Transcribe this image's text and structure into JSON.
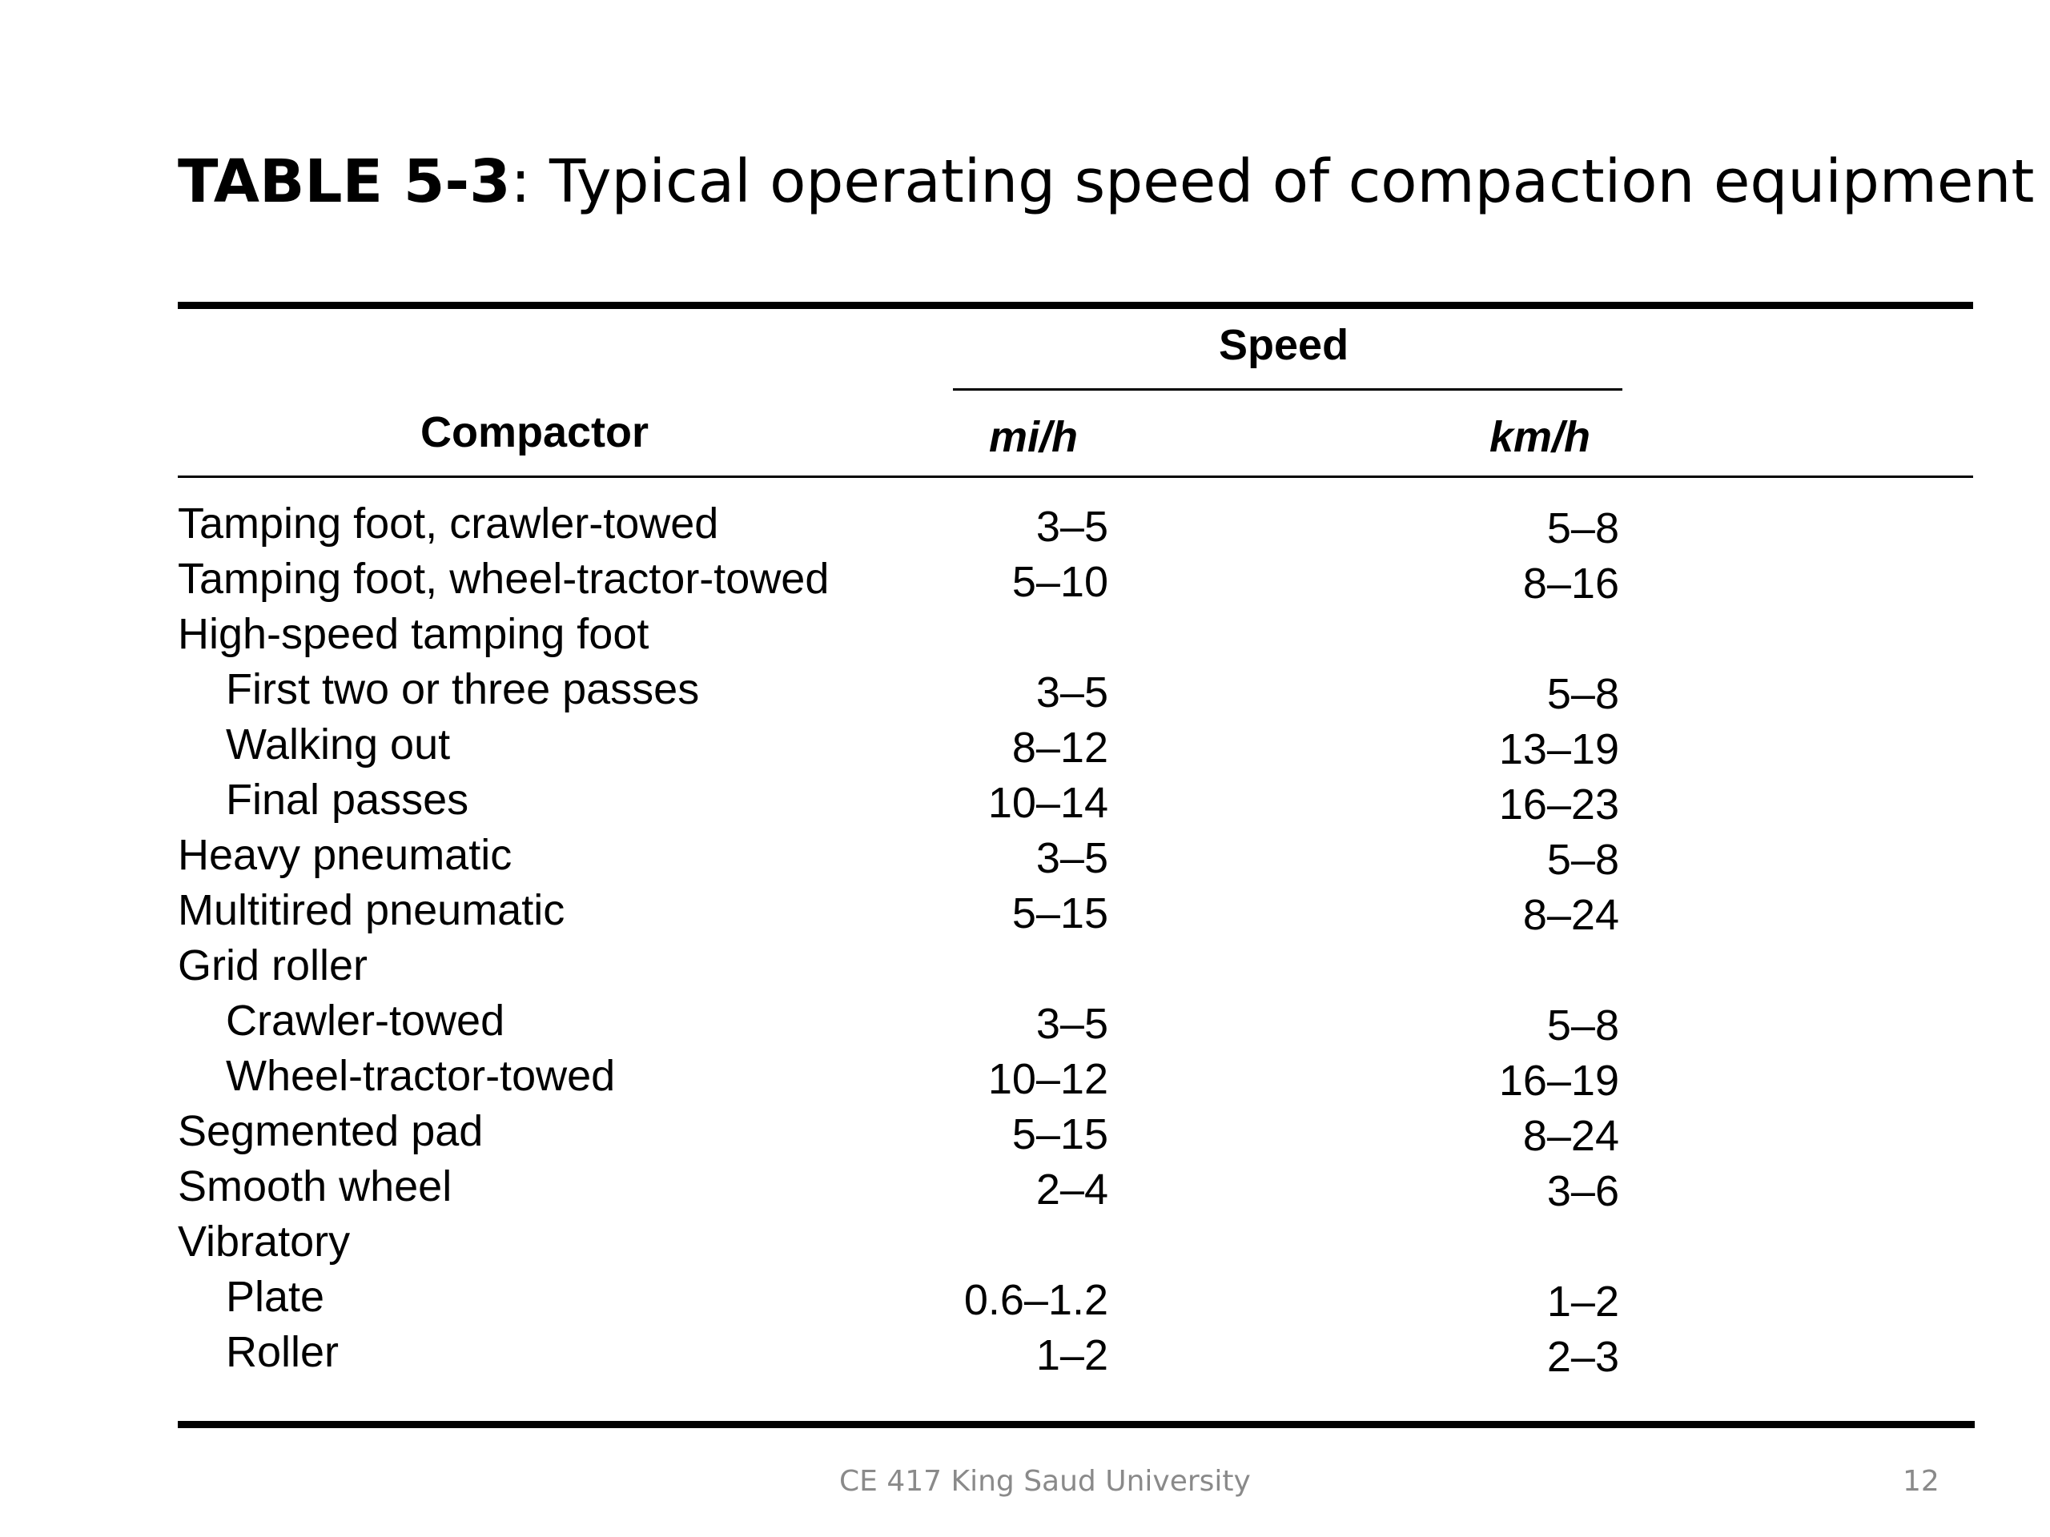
{
  "title": {
    "bold": "TABLE 5-3",
    "rest": ": Typical operating speed of compaction equipment"
  },
  "table": {
    "group_header": "Speed",
    "columns": [
      "Compactor",
      "mi/h",
      "km/h"
    ],
    "rows": [
      {
        "name": "Tamping foot, crawler-towed",
        "indent": false,
        "mph": "3–5",
        "kph": "5–8"
      },
      {
        "name": "Tamping foot, wheel-tractor-towed",
        "indent": false,
        "mph": "5–10",
        "kph": "8–16"
      },
      {
        "name": "High-speed tamping foot",
        "indent": false,
        "mph": "",
        "kph": ""
      },
      {
        "name": "First two or three passes",
        "indent": true,
        "mph": "3–5",
        "kph": "5–8"
      },
      {
        "name": "Walking out",
        "indent": true,
        "mph": "8–12",
        "kph": "13–19"
      },
      {
        "name": "Final passes",
        "indent": true,
        "mph": "10–14",
        "kph": "16–23"
      },
      {
        "name": "Heavy pneumatic",
        "indent": false,
        "mph": "3–5",
        "kph": "5–8"
      },
      {
        "name": "Multitired pneumatic",
        "indent": false,
        "mph": "5–15",
        "kph": "8–24"
      },
      {
        "name": "Grid roller",
        "indent": false,
        "mph": "",
        "kph": ""
      },
      {
        "name": "Crawler-towed",
        "indent": true,
        "mph": "3–5",
        "kph": "5–8"
      },
      {
        "name": "Wheel-tractor-towed",
        "indent": true,
        "mph": "10–12",
        "kph": "16–19"
      },
      {
        "name": "Segmented pad",
        "indent": false,
        "mph": "5–15",
        "kph": "8–24"
      },
      {
        "name": "Smooth wheel",
        "indent": false,
        "mph": "2–4",
        "kph": "3–6"
      },
      {
        "name": "Vibratory",
        "indent": false,
        "mph": "",
        "kph": ""
      },
      {
        "name": "Plate",
        "indent": true,
        "mph": "0.6–1.2",
        "kph": "1–2"
      },
      {
        "name": "Roller",
        "indent": true,
        "mph": "1–2",
        "kph": "2–3"
      }
    ]
  },
  "footer": {
    "center": "CE 417 King Saud University",
    "page": "12"
  }
}
